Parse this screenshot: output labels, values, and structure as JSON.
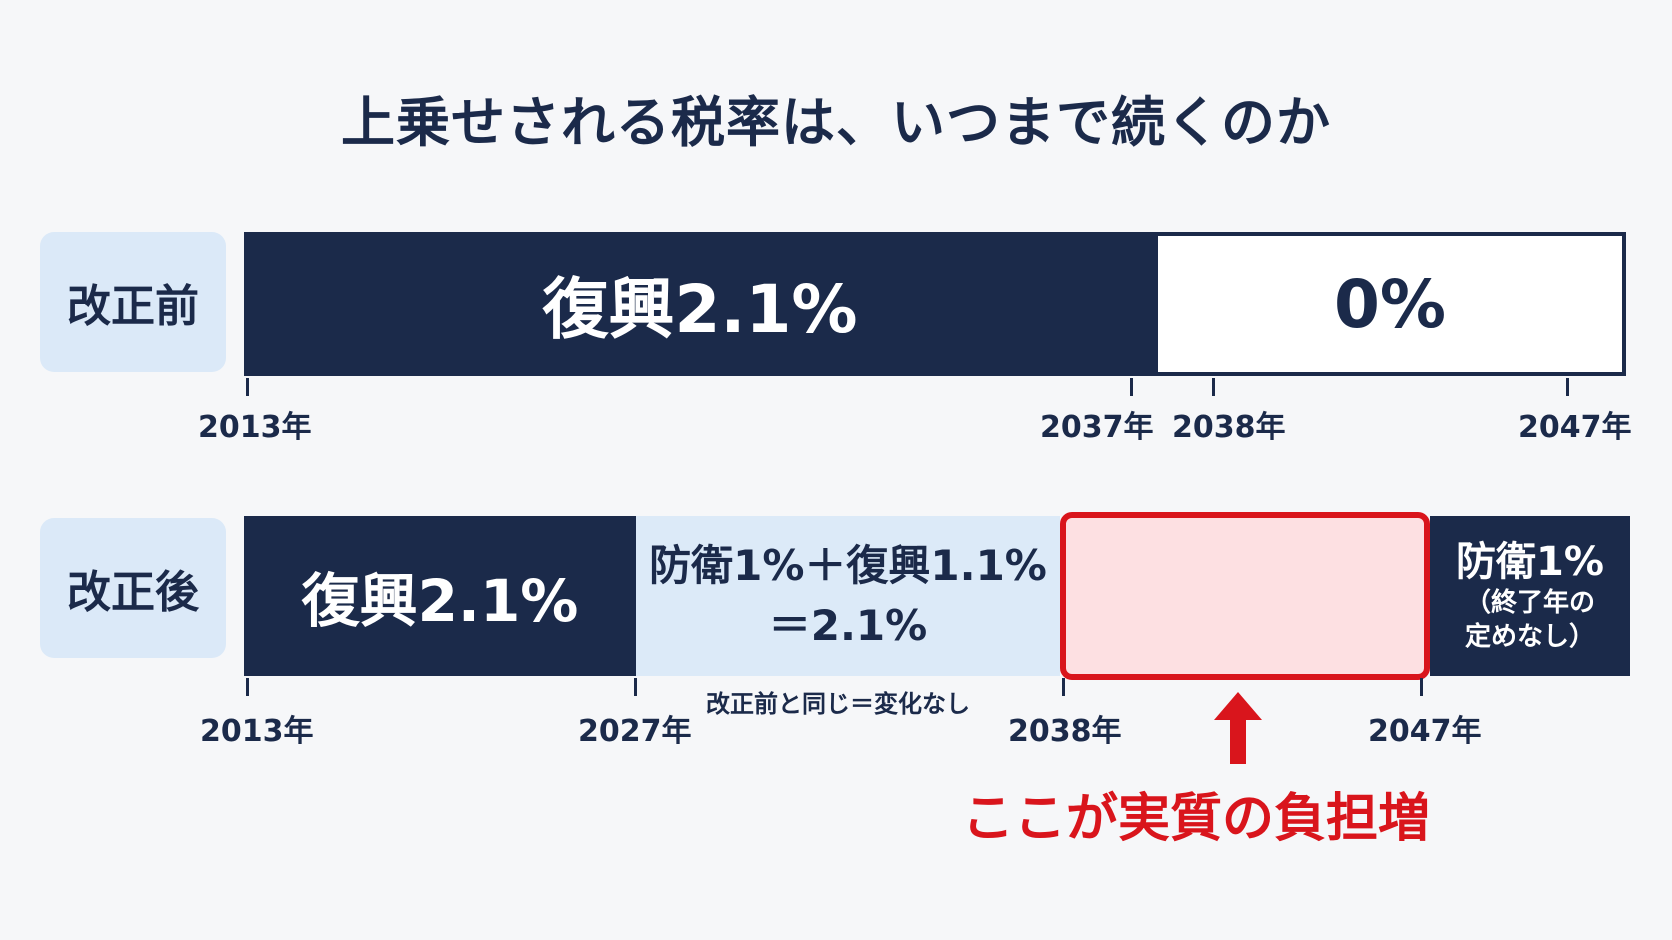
{
  "title": "上乗せされる税率は、いつまで続くのか",
  "before": {
    "label": "改正前",
    "segments": [
      {
        "text": "復興2.1%"
      },
      {
        "text": "0%"
      }
    ],
    "years": [
      "2013年",
      "2037年",
      "2038年",
      "2047年"
    ]
  },
  "after": {
    "label": "改正後",
    "segments": [
      {
        "text": "復興2.1%"
      },
      {
        "line1": "防衛1%＋復興1.1%",
        "line2": "＝2.1%"
      },
      {
        "text": ""
      },
      {
        "line1": "防衛1%",
        "line2": "（終了年の",
        "line3": "定めなし）"
      }
    ],
    "years": [
      "2013年",
      "2027年",
      "2038年",
      "2047年"
    ],
    "note": "改正前と同じ＝変化なし"
  },
  "callout": {
    "text": "ここが実質の負担増",
    "color": "#d9151c"
  },
  "colors": {
    "navy": "#1b2a4a",
    "light_blue": "#dceaf8",
    "pink": "#fde0e2",
    "red": "#d9151c"
  }
}
